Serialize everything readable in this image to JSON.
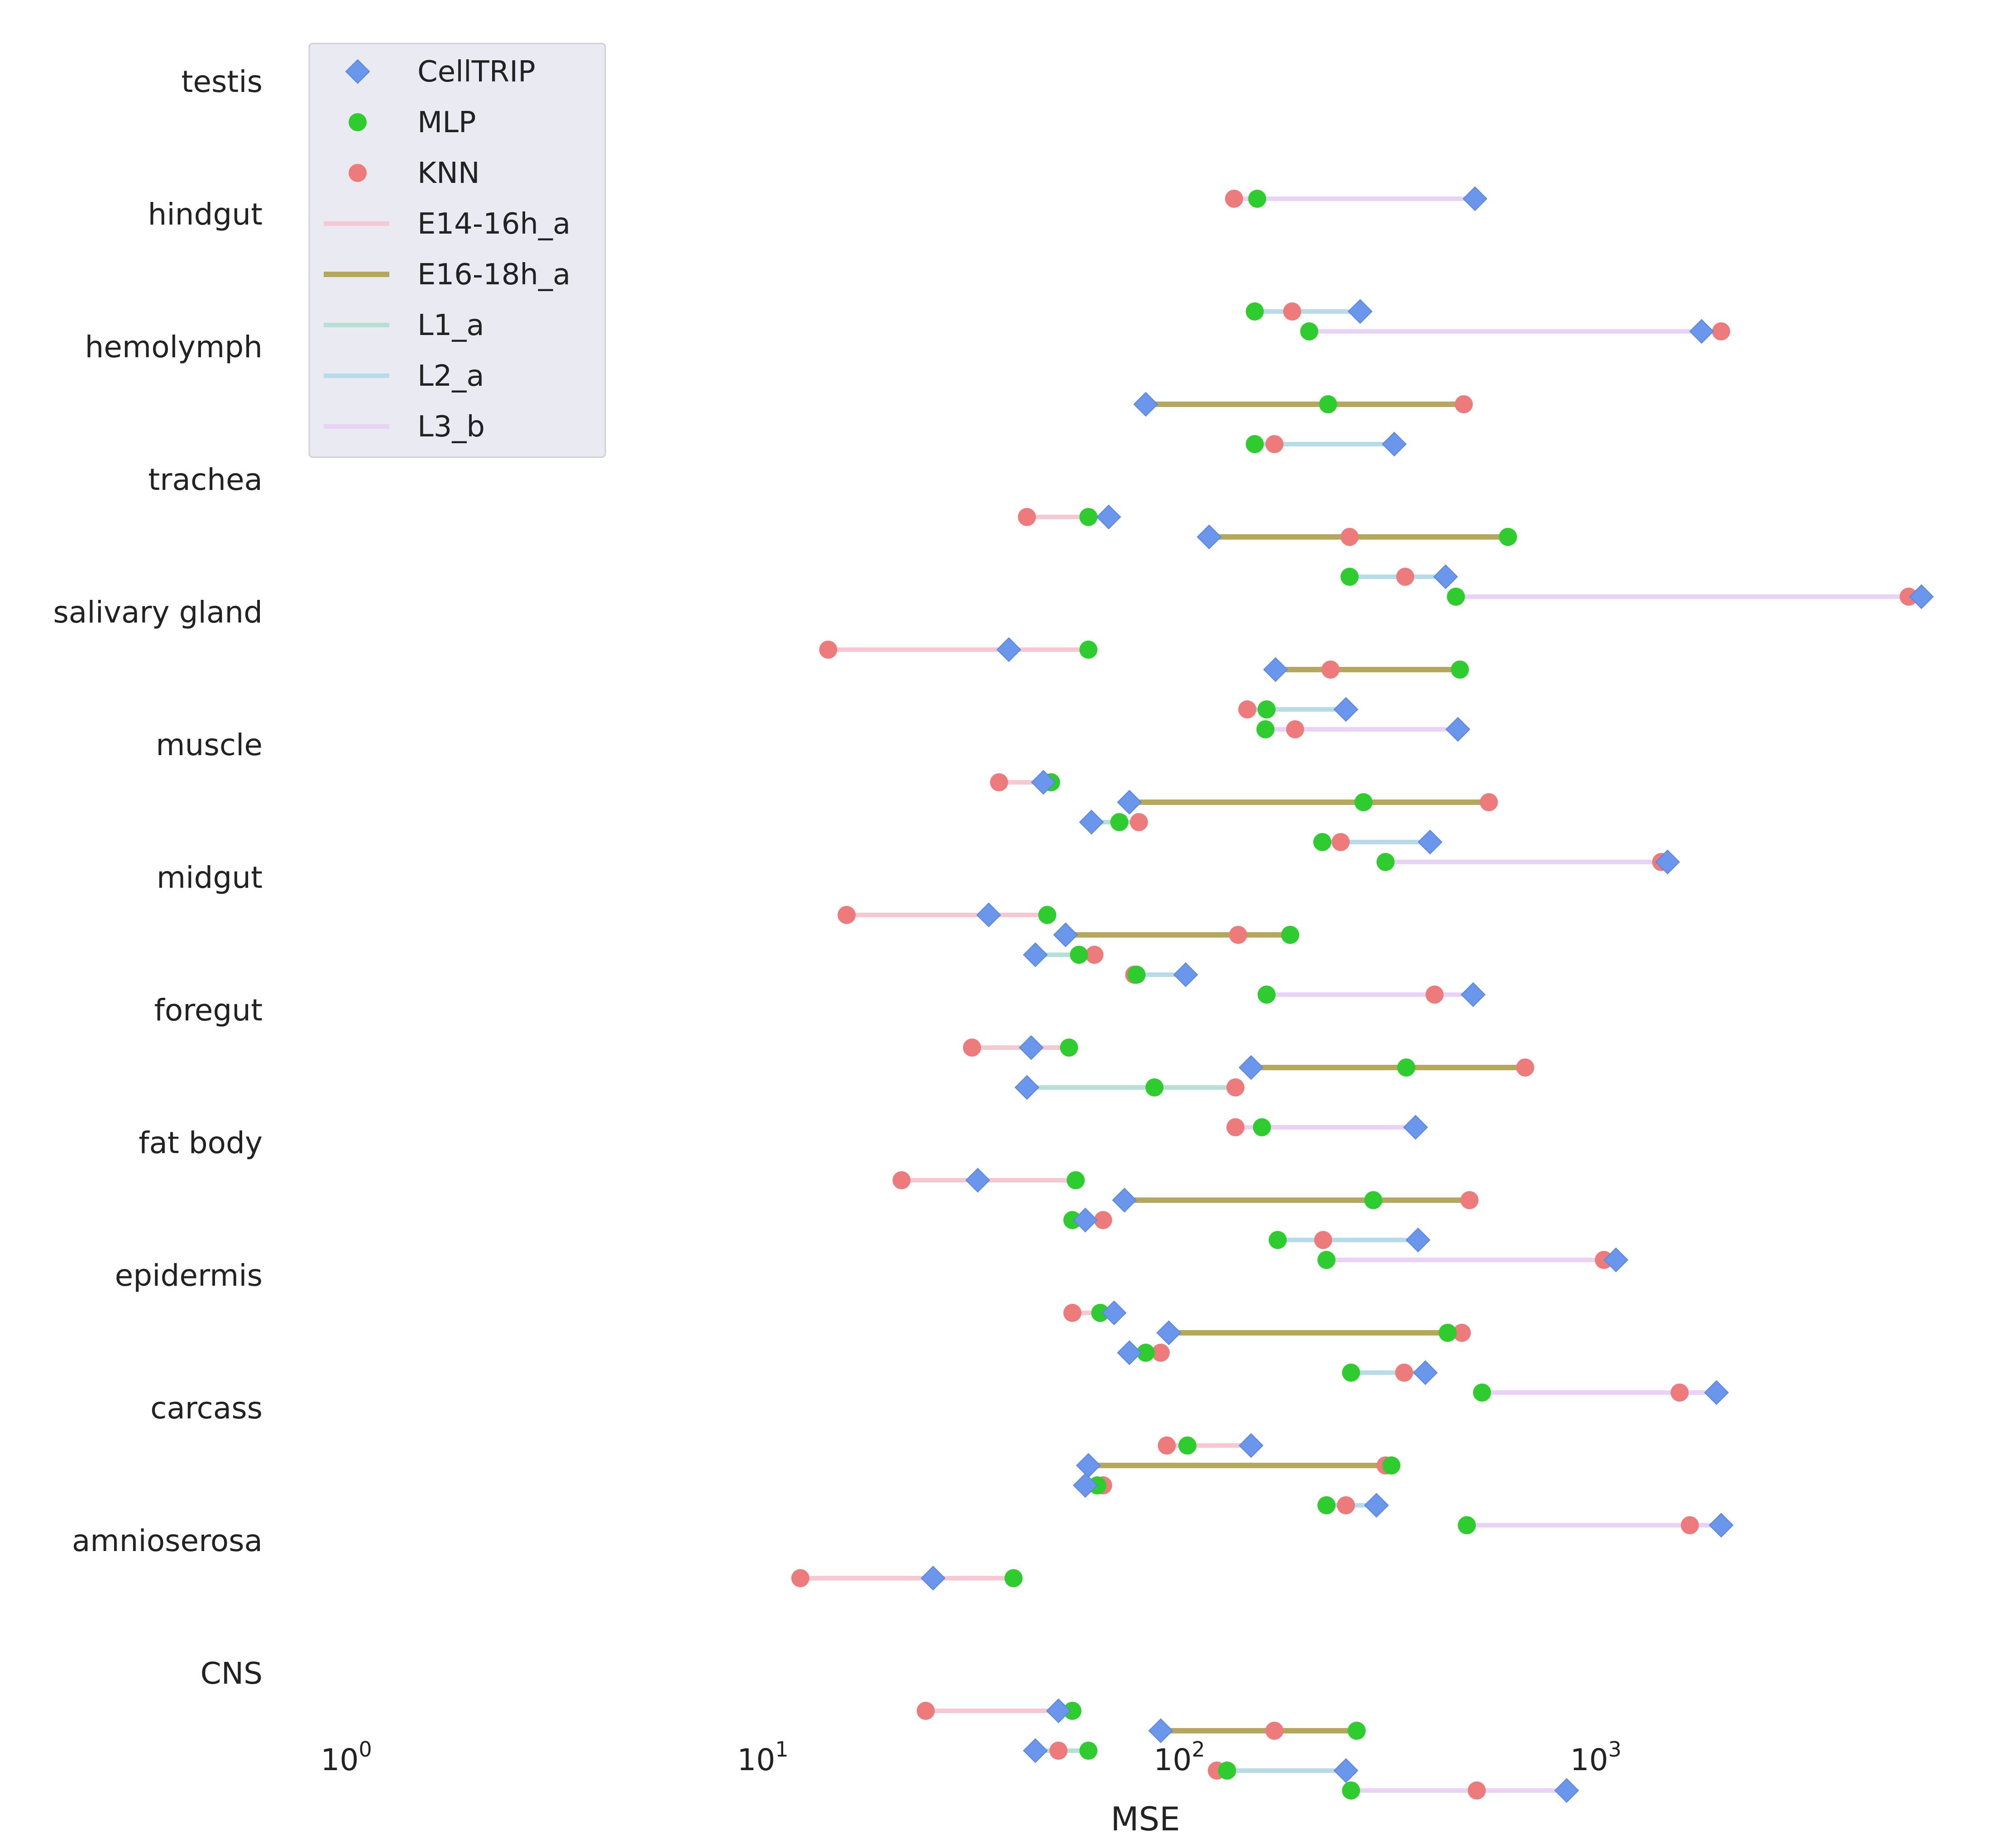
{
  "chart_data": {
    "type": "dumbbell",
    "xlabel": "MSE",
    "x_scale": "log",
    "xlim": [
      1,
      7000
    ],
    "x_ticks": [
      {
        "value": 1,
        "base": "10",
        "exp": "0"
      },
      {
        "value": 10,
        "base": "10",
        "exp": "1"
      },
      {
        "value": 100,
        "base": "10",
        "exp": "2"
      },
      {
        "value": 1000,
        "base": "10",
        "exp": "3"
      }
    ],
    "categories": [
      "testis",
      "hindgut",
      "hemolymph",
      "trachea",
      "salivary gland",
      "muscle",
      "midgut",
      "foregut",
      "fat body",
      "epidermis",
      "carcass",
      "amnioserosa",
      "CNS"
    ],
    "methods": [
      {
        "name": "CellTRIP",
        "marker": "diamond",
        "color": "#6a96ec"
      },
      {
        "name": "MLP",
        "marker": "circle",
        "color": "#2ecc2e"
      },
      {
        "name": "KNN",
        "marker": "circle",
        "color": "#ee7b7b"
      }
    ],
    "datasets": [
      {
        "name": "E14-16h_a",
        "color": "#f7c8d2",
        "width": 10
      },
      {
        "name": "E16-18h_a",
        "color": "#b5a75c",
        "width": 12
      },
      {
        "name": "L1_a",
        "color": "#b5e0d4",
        "width": 10
      },
      {
        "name": "L2_a",
        "color": "#b6dcea",
        "width": 10
      },
      {
        "name": "L3_b",
        "color": "#ead2f7",
        "width": 10
      }
    ],
    "grid": false,
    "legend_position": "top-left",
    "rows": [
      {
        "tissue": "testis",
        "dataset": "L3_b",
        "slot": 4,
        "CellTRIP": 500,
        "MLP": 150,
        "KNN": 132
      },
      {
        "tissue": "hindgut",
        "dataset": "L2_a",
        "slot": 3,
        "CellTRIP": 265,
        "MLP": 148,
        "KNN": 182
      },
      {
        "tissue": "hindgut",
        "dataset": "L3_b",
        "slot": 4,
        "CellTRIP": 1750,
        "MLP": 200,
        "KNN": 1950
      },
      {
        "tissue": "hemolymph",
        "dataset": "E16-18h_a",
        "slot": 1,
        "CellTRIP": 81,
        "MLP": 222,
        "KNN": 470
      },
      {
        "tissue": "hemolymph",
        "dataset": "L2_a",
        "slot": 3,
        "CellTRIP": 320,
        "MLP": 148,
        "KNN": 165
      },
      {
        "tissue": "trachea",
        "dataset": "E14-16h_a",
        "slot": 0,
        "CellTRIP": 66,
        "MLP": 59,
        "KNN": 42
      },
      {
        "tissue": "trachea",
        "dataset": "E16-18h_a",
        "slot": 1,
        "CellTRIP": 115,
        "MLP": 600,
        "KNN": 250
      },
      {
        "tissue": "trachea",
        "dataset": "L2_a",
        "slot": 3,
        "CellTRIP": 425,
        "MLP": 250,
        "KNN": 340
      },
      {
        "tissue": "trachea",
        "dataset": "L3_b",
        "slot": 4,
        "CellTRIP": 5900,
        "MLP": 450,
        "KNN": 5500
      },
      {
        "tissue": "salivary gland",
        "dataset": "E14-16h_a",
        "slot": 0,
        "CellTRIP": 38,
        "MLP": 59,
        "KNN": 14
      },
      {
        "tissue": "salivary gland",
        "dataset": "E16-18h_a",
        "slot": 1,
        "CellTRIP": 166,
        "MLP": 460,
        "KNN": 225
      },
      {
        "tissue": "salivary gland",
        "dataset": "L2_a",
        "slot": 3,
        "CellTRIP": 245,
        "MLP": 158,
        "KNN": 142
      },
      {
        "tissue": "salivary gland",
        "dataset": "L3_b",
        "slot": 4,
        "CellTRIP": 455,
        "MLP": 157,
        "KNN": 185
      },
      {
        "tissue": "muscle",
        "dataset": "E14-16h_a",
        "slot": 0,
        "CellTRIP": 46,
        "MLP": 48,
        "KNN": 36
      },
      {
        "tissue": "muscle",
        "dataset": "E16-18h_a",
        "slot": 1,
        "CellTRIP": 74,
        "MLP": 270,
        "KNN": 540
      },
      {
        "tissue": "muscle",
        "dataset": "L1_a",
        "slot": 2,
        "CellTRIP": 60,
        "MLP": 70,
        "KNN": 78
      },
      {
        "tissue": "muscle",
        "dataset": "L2_a",
        "slot": 3,
        "CellTRIP": 390,
        "MLP": 215,
        "KNN": 238
      },
      {
        "tissue": "muscle",
        "dataset": "L3_b",
        "slot": 4,
        "CellTRIP": 1450,
        "MLP": 305,
        "KNN": 1400
      },
      {
        "tissue": "midgut",
        "dataset": "E14-16h_a",
        "slot": 0,
        "CellTRIP": 34,
        "MLP": 47,
        "KNN": 15.5
      },
      {
        "tissue": "midgut",
        "dataset": "E16-18h_a",
        "slot": 1,
        "CellTRIP": 52,
        "MLP": 180,
        "KNN": 135
      },
      {
        "tissue": "midgut",
        "dataset": "L1_a",
        "slot": 2,
        "CellTRIP": 44,
        "MLP": 56,
        "KNN": 61
      },
      {
        "tissue": "midgut",
        "dataset": "L2_a",
        "slot": 3,
        "CellTRIP": 101,
        "MLP": 77,
        "KNN": 76
      },
      {
        "tissue": "midgut",
        "dataset": "L3_b",
        "slot": 4,
        "CellTRIP": 495,
        "MLP": 158,
        "KNN": 400
      },
      {
        "tissue": "foregut",
        "dataset": "E14-16h_a",
        "slot": 0,
        "CellTRIP": 43,
        "MLP": 53,
        "KNN": 31
      },
      {
        "tissue": "foregut",
        "dataset": "E16-18h_a",
        "slot": 1,
        "CellTRIP": 145,
        "MLP": 342,
        "KNN": 660
      },
      {
        "tissue": "foregut",
        "dataset": "L1_a",
        "slot": 2,
        "CellTRIP": 42,
        "MLP": 85,
        "KNN": 133
      },
      {
        "tissue": "foregut",
        "dataset": "L3_b",
        "slot": 4,
        "CellTRIP": 360,
        "MLP": 154,
        "KNN": 133
      },
      {
        "tissue": "fat body",
        "dataset": "E14-16h_a",
        "slot": 0,
        "CellTRIP": 32,
        "MLP": 55,
        "KNN": 21
      },
      {
        "tissue": "fat body",
        "dataset": "E16-18h_a",
        "slot": 1,
        "CellTRIP": 72,
        "MLP": 285,
        "KNN": 485
      },
      {
        "tissue": "fat body",
        "dataset": "L1_a",
        "slot": 2,
        "CellTRIP": 58,
        "MLP": 54,
        "KNN": 64
      },
      {
        "tissue": "fat body",
        "dataset": "L2_a",
        "slot": 3,
        "CellTRIP": 365,
        "MLP": 168,
        "KNN": 216
      },
      {
        "tissue": "fat body",
        "dataset": "L3_b",
        "slot": 4,
        "CellTRIP": 1090,
        "MLP": 220,
        "KNN": 1020
      },
      {
        "tissue": "epidermis",
        "dataset": "E14-16h_a",
        "slot": 0,
        "CellTRIP": 68,
        "MLP": 63,
        "KNN": 54
      },
      {
        "tissue": "epidermis",
        "dataset": "E16-18h_a",
        "slot": 1,
        "CellTRIP": 92,
        "MLP": 430,
        "KNN": 465
      },
      {
        "tissue": "epidermis",
        "dataset": "L1_a",
        "slot": 2,
        "CellTRIP": 74,
        "MLP": 81,
        "KNN": 88
      },
      {
        "tissue": "epidermis",
        "dataset": "L2_a",
        "slot": 3,
        "CellTRIP": 380,
        "MLP": 252,
        "KNN": 338
      },
      {
        "tissue": "epidermis",
        "dataset": "L3_b",
        "slot": 4,
        "CellTRIP": 1900,
        "MLP": 520,
        "KNN": 1550
      },
      {
        "tissue": "carcass",
        "dataset": "E14-16h_a",
        "slot": 0,
        "CellTRIP": 145,
        "MLP": 102,
        "KNN": 91
      },
      {
        "tissue": "carcass",
        "dataset": "E16-18h_a",
        "slot": 1,
        "CellTRIP": 59,
        "MLP": 315,
        "KNN": 305
      },
      {
        "tissue": "carcass",
        "dataset": "L1_a",
        "slot": 2,
        "CellTRIP": 58,
        "MLP": 62,
        "KNN": 64
      },
      {
        "tissue": "carcass",
        "dataset": "L2_a",
        "slot": 3,
        "CellTRIP": 290,
        "MLP": 220,
        "KNN": 245
      },
      {
        "tissue": "carcass",
        "dataset": "L3_b",
        "slot": 4,
        "CellTRIP": 1950,
        "MLP": 478,
        "KNN": 1640
      },
      {
        "tissue": "amnioserosa",
        "dataset": "E14-16h_a",
        "slot": 0,
        "CellTRIP": 25,
        "MLP": 39,
        "KNN": 12
      },
      {
        "tissue": "CNS",
        "dataset": "E14-16h_a",
        "slot": 0,
        "CellTRIP": 50,
        "MLP": 54,
        "KNN": 24
      },
      {
        "tissue": "CNS",
        "dataset": "E16-18h_a",
        "slot": 1,
        "CellTRIP": 88,
        "MLP": 260,
        "KNN": 165
      },
      {
        "tissue": "CNS",
        "dataset": "L1_a",
        "slot": 2,
        "CellTRIP": 44,
        "MLP": 59,
        "KNN": 50
      },
      {
        "tissue": "CNS",
        "dataset": "L2_a",
        "slot": 3,
        "CellTRIP": 245,
        "MLP": 127,
        "KNN": 120
      },
      {
        "tissue": "CNS",
        "dataset": "L3_b",
        "slot": 4,
        "CellTRIP": 830,
        "MLP": 252,
        "KNN": 505
      }
    ]
  }
}
